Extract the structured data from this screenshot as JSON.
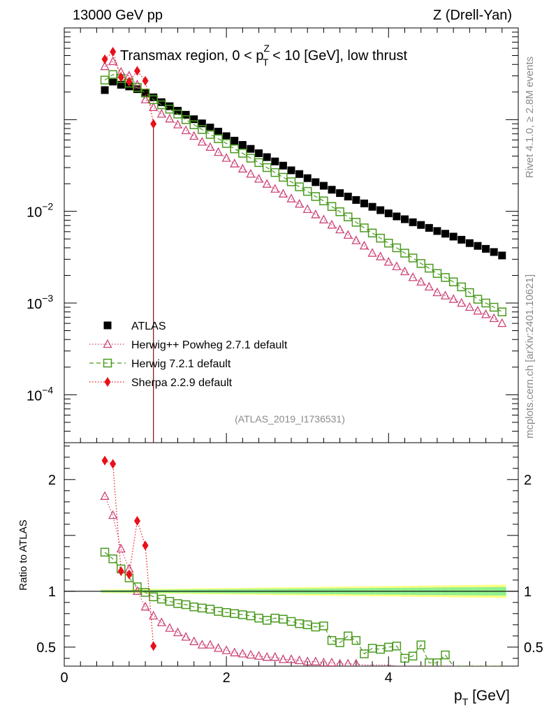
{
  "header": {
    "energy_label": "13000 GeV pp",
    "process_label": "Z (Drell-Yan)"
  },
  "side_labels": {
    "rivet": "Rivet 4.1.0, ≥ 2.8M events",
    "mcplots": "mcplots.cern.ch [arXiv:2401.10621]"
  },
  "chart_data": {
    "type": "scatter",
    "title_parts": {
      "pre": "Transmax region, 0 < p",
      "sup": "Z",
      "sub": "T",
      "post": " < 10 [GeV], low thrust"
    },
    "analysis_ref": "(ATLAS_2019_I1736531)",
    "xlabel": "p",
    "xlabel_sub": "T",
    "xlabel_unit": " [GeV]",
    "ratio_ylabel": "Ratio to ATLAS",
    "xlim": [
      0,
      5.6
    ],
    "main_ylim": [
      3e-05,
      1.0
    ],
    "main_yscale": "log",
    "main_ytick_labels": [
      {
        "v": 0.01,
        "base": "10",
        "exp": "−2"
      },
      {
        "v": 0.001,
        "base": "10",
        "exp": "−3"
      },
      {
        "v": 0.0001,
        "base": "10",
        "exp": "−4"
      }
    ],
    "ratio_ylim": [
      0.33,
      2.33
    ],
    "ratio_yticks": [
      {
        "v": 0.5,
        "label": "0.5"
      },
      {
        "v": 1,
        "label": "1"
      },
      {
        "v": 2,
        "label": "2"
      }
    ],
    "x_tick_labels": [
      {
        "v": 0,
        "label": "0"
      },
      {
        "v": 2,
        "label": "2"
      },
      {
        "v": 4,
        "label": "4"
      }
    ],
    "x": [
      0.5,
      0.6,
      0.7,
      0.8,
      0.9,
      1.0,
      1.1,
      1.2,
      1.3,
      1.4,
      1.5,
      1.6,
      1.7,
      1.8,
      1.9,
      2.0,
      2.1,
      2.2,
      2.3,
      2.4,
      2.5,
      2.6,
      2.7,
      2.8,
      2.9,
      3.0,
      3.1,
      3.2,
      3.3,
      3.4,
      3.5,
      3.6,
      3.7,
      3.8,
      3.9,
      4.0,
      4.1,
      4.2,
      4.3,
      4.4,
      4.5,
      4.6,
      4.7,
      4.8,
      4.9,
      5.0,
      5.1,
      5.2,
      5.3,
      5.4
    ],
    "legend": [
      {
        "name": "ATLAS",
        "color": "#000000",
        "marker": "square-filled",
        "line": "none"
      },
      {
        "name": "Herwig++ Powheg 2.7.1 default",
        "color": "#cc4477",
        "marker": "triangle-open",
        "line": "dotted"
      },
      {
        "name": "Herwig 7.2.1 default",
        "color": "#4a9a1e",
        "marker": "square-open",
        "line": "dashed"
      },
      {
        "name": "Sherpa 2.2.9 default",
        "color": "#e8101a",
        "marker": "diamond-filled",
        "line": "dotted"
      }
    ],
    "series": [
      {
        "name": "ATLAS",
        "values": [
          0.21,
          0.26,
          0.24,
          0.23,
          0.215,
          0.195,
          0.175,
          0.155,
          0.14,
          0.125,
          0.113,
          0.101,
          0.091,
          0.082,
          0.074,
          0.066,
          0.059,
          0.053,
          0.048,
          0.043,
          0.039,
          0.035,
          0.0315,
          0.028,
          0.0255,
          0.023,
          0.0208,
          0.019,
          0.0172,
          0.0158,
          0.0145,
          0.0133,
          0.0122,
          0.0112,
          0.0103,
          0.0095,
          0.0088,
          0.0082,
          0.0076,
          0.0071,
          0.0066,
          0.0061,
          0.0057,
          0.0053,
          0.0049,
          0.0045,
          0.0042,
          0.0039,
          0.0036,
          0.0033
        ]
      },
      {
        "name": "Herwig++ Powheg 2.7.1 default",
        "values": [
          0.38,
          0.43,
          0.33,
          0.3,
          0.24,
          0.165,
          0.136,
          0.115,
          0.102,
          0.088,
          0.076,
          0.066,
          0.057,
          0.05,
          0.044,
          0.038,
          0.033,
          0.029,
          0.0255,
          0.0225,
          0.0198,
          0.0175,
          0.0155,
          0.0137,
          0.012,
          0.0105,
          0.0092,
          0.0081,
          0.0071,
          0.0063,
          0.0055,
          0.0048,
          0.0042,
          0.0035,
          0.0032,
          0.0028,
          0.0025,
          0.0022,
          0.0019,
          0.0017,
          0.0015,
          0.0013,
          0.0012,
          0.0011,
          0.001,
          0.0009,
          0.00082,
          0.00075,
          0.00068,
          0.0006
        ]
      },
      {
        "name": "Herwig 7.2.1 default",
        "values": [
          0.27,
          0.31,
          0.28,
          0.25,
          0.225,
          0.195,
          0.165,
          0.145,
          0.13,
          0.115,
          0.1,
          0.088,
          0.078,
          0.069,
          0.062,
          0.055,
          0.048,
          0.043,
          0.038,
          0.034,
          0.03,
          0.0265,
          0.0235,
          0.021,
          0.0185,
          0.0165,
          0.0145,
          0.013,
          0.0113,
          0.0099,
          0.0087,
          0.0076,
          0.0066,
          0.0058,
          0.0051,
          0.0045,
          0.004,
          0.0035,
          0.0031,
          0.0027,
          0.0024,
          0.0021,
          0.0019,
          0.0017,
          0.0015,
          0.0013,
          0.0011,
          0.001,
          0.0009,
          0.0008
        ]
      },
      {
        "name": "Sherpa 2.2.9 default",
        "values": [
          0.455,
          0.55,
          0.29,
          0.26,
          0.34,
          0.265,
          0.09
        ]
      }
    ],
    "ratios": [
      {
        "name": "Herwig++ Powheg 2.7.1 default",
        "values": [
          1.85,
          1.68,
          1.38,
          1.2,
          1.0,
          0.86,
          0.78,
          0.72,
          0.67,
          0.63,
          0.59,
          0.55,
          0.52,
          0.52,
          0.49,
          0.47,
          0.45,
          0.44,
          0.43,
          0.42,
          0.41,
          0.41,
          0.39,
          0.39,
          0.38,
          0.37,
          0.37,
          0.36,
          0.36,
          0.35,
          0.35,
          0.35,
          0.34,
          0.34,
          0.34,
          0.34,
          0.33,
          0.33,
          0.33,
          0.33,
          0.33,
          0.33,
          0.33,
          0.33,
          0.33,
          0.33,
          0.33,
          0.33,
          0.33,
          0.33
        ]
      },
      {
        "name": "Herwig 7.2.1 default",
        "values": [
          1.35,
          1.29,
          1.2,
          1.12,
          1.04,
          0.99,
          0.95,
          0.93,
          0.91,
          0.89,
          0.88,
          0.86,
          0.85,
          0.84,
          0.82,
          0.81,
          0.8,
          0.79,
          0.78,
          0.76,
          0.74,
          0.76,
          0.75,
          0.73,
          0.71,
          0.7,
          0.68,
          0.69,
          0.56,
          0.54,
          0.6,
          0.56,
          0.44,
          0.49,
          0.48,
          0.5,
          0.51,
          0.4,
          0.42,
          0.52,
          0.36,
          0.36,
          0.43,
          0.33,
          0.33,
          0.33,
          0.33,
          0.33,
          0.33,
          0.33
        ]
      },
      {
        "name": "Sherpa 2.2.9 default",
        "values": [
          2.17,
          2.14,
          1.18,
          1.15,
          1.63,
          1.41,
          0.51
        ]
      }
    ]
  }
}
